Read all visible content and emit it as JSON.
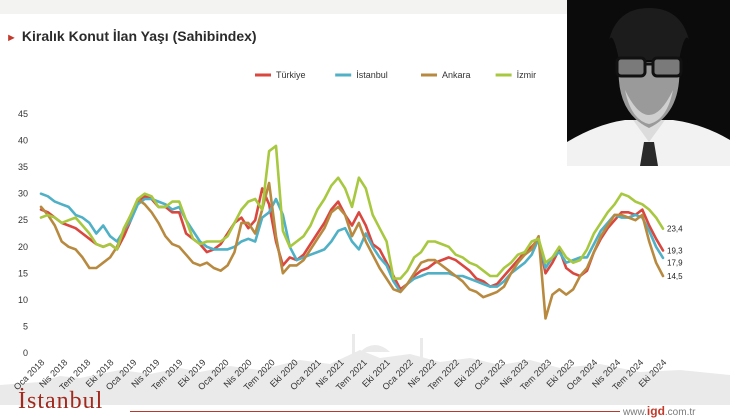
{
  "header": {
    "title": "Kiralık Konut İlan Yaşı (Sahibindex)"
  },
  "footer": {
    "brand": "İstanbul",
    "site_prefix": "www.",
    "site_main": "igd",
    "site_suffix": ".com.tr"
  },
  "chart_data": {
    "type": "line",
    "title": "Kiralık Konut İlan Yaşı (Sahibindex)",
    "xlabel": "",
    "ylabel": "",
    "ylim": [
      0,
      45
    ],
    "yticks": [
      0,
      5,
      10,
      15,
      20,
      25,
      30,
      35,
      40,
      45
    ],
    "grid": false,
    "legend_position": "top",
    "x_tick_labels": [
      "Oca 2018",
      "Nis 2018",
      "Tem 2018",
      "Eki 2018",
      "Oca 2019",
      "Nis 2019",
      "Tem 2019",
      "Eki 2019",
      "Oca 2020",
      "Nis 2020",
      "Tem 2020",
      "Eki 2020",
      "Oca 2021",
      "Nis 2021",
      "Tem 2021",
      "Eki 2021",
      "Oca 2022",
      "Nis 2022",
      "Tem 2022",
      "Eki 2022",
      "Oca 2023",
      "Nis 2023",
      "Tem 2023",
      "Eki 2023",
      "Oca 2024",
      "Nis 2024",
      "Tem 2024",
      "Eki 2024"
    ],
    "series": [
      {
        "name": "Türkiye",
        "color": "#d9473f",
        "end_label": "19,3",
        "values": [
          27,
          26.5,
          25.5,
          24.5,
          24,
          23.5,
          22.5,
          21.5,
          20.5,
          20,
          20.5,
          19.5,
          22,
          25,
          28.5,
          29.5,
          29,
          27.5,
          27.5,
          26.5,
          26.5,
          22.5,
          21.5,
          20.5,
          19,
          19.5,
          20.5,
          22.5,
          24.5,
          25.5,
          23.5,
          25,
          31,
          28,
          21,
          16.5,
          18,
          17.5,
          18.5,
          20.5,
          22.5,
          24.5,
          27,
          28.5,
          26,
          24,
          26.5,
          24,
          20.5,
          19.5,
          17,
          14.5,
          12,
          13,
          14.5,
          15.5,
          16,
          17,
          17.5,
          18,
          17.5,
          16.5,
          15.5,
          14,
          13.5,
          12.5,
          13,
          14.5,
          16,
          17.5,
          19,
          20,
          21.5,
          15,
          17,
          19.5,
          16,
          15,
          14.5,
          15.5,
          19,
          21.5,
          23.5,
          25,
          26.5,
          26.5,
          26,
          27,
          24,
          21.5,
          19.3
        ]
      },
      {
        "name": "İstanbul",
        "color": "#4fb0c6",
        "end_label": "17,9",
        "values": [
          30,
          29.5,
          28.5,
          28,
          27.5,
          26,
          25.5,
          24.5,
          22.5,
          24,
          22,
          21,
          23,
          25,
          28,
          29,
          29,
          28.5,
          28,
          27,
          27.5,
          25,
          23,
          21,
          20,
          19.5,
          19.5,
          19.5,
          20,
          21,
          21.5,
          21,
          25.5,
          26.5,
          29,
          26,
          20,
          17.5,
          18,
          18.5,
          19,
          19.5,
          21,
          23,
          23.5,
          21,
          19.5,
          22.5,
          20,
          18,
          16.5,
          13.5,
          11.5,
          13,
          14,
          14.5,
          15,
          15,
          15,
          15,
          14.5,
          14.5,
          14,
          13.5,
          13,
          12.5,
          12.5,
          13.5,
          15,
          16,
          17,
          18.5,
          21.5,
          16,
          18,
          19,
          17,
          17.5,
          18,
          18,
          20.5,
          23,
          24.5,
          26,
          25.5,
          25.5,
          26,
          25.5,
          23,
          20,
          17.9
        ]
      },
      {
        "name": "Ankara",
        "color": "#b88a40",
        "end_label": "14,5",
        "values": [
          27.5,
          26,
          24,
          21,
          20,
          19.5,
          18,
          16,
          16,
          17,
          18,
          20,
          23,
          26,
          29,
          28,
          26.5,
          24.5,
          22,
          20.5,
          20,
          18.5,
          17,
          16.5,
          17,
          16,
          15.5,
          16.5,
          19,
          24.5,
          24.5,
          22.5,
          27,
          32,
          22,
          15,
          16.5,
          16.5,
          17.5,
          19.5,
          21.5,
          23.5,
          26.5,
          27.5,
          26,
          22,
          24.5,
          21,
          18.5,
          16,
          14,
          12,
          11.5,
          13,
          15,
          17,
          17.5,
          17.5,
          16.5,
          15.5,
          14.5,
          13.5,
          12,
          11.5,
          10.5,
          11,
          11.5,
          12.5,
          15,
          17,
          18.5,
          19.5,
          22,
          6.5,
          11,
          12,
          11,
          12,
          14.5,
          16,
          19,
          22,
          24,
          26,
          26,
          25.5,
          25,
          26,
          21,
          17,
          14.5
        ]
      },
      {
        "name": "İzmir",
        "color": "#a7c83f",
        "end_label": "23,4",
        "values": [
          25.5,
          26,
          25.5,
          24.5,
          25,
          25.5,
          24,
          22.5,
          20.5,
          20,
          20.5,
          19.5,
          23.5,
          26,
          29,
          30,
          29.5,
          27.5,
          27.5,
          28.5,
          28.5,
          25,
          21.5,
          20.5,
          21,
          21,
          21,
          22,
          24.5,
          27,
          28.5,
          29,
          27,
          38,
          39,
          23,
          20,
          21,
          22,
          24,
          27,
          29,
          31.5,
          33,
          31,
          27.5,
          33,
          31,
          26,
          23.5,
          21,
          14,
          14,
          15.5,
          18,
          19,
          21,
          21,
          20.5,
          20,
          18.5,
          18,
          17,
          16.5,
          15.5,
          14.5,
          14.5,
          16,
          17,
          18.5,
          19,
          21,
          21.5,
          17,
          18,
          20,
          18,
          17,
          17.5,
          19.5,
          22.5,
          24.5,
          26.5,
          28,
          30,
          29.5,
          28.5,
          28,
          27,
          25.5,
          23.4
        ]
      }
    ]
  }
}
